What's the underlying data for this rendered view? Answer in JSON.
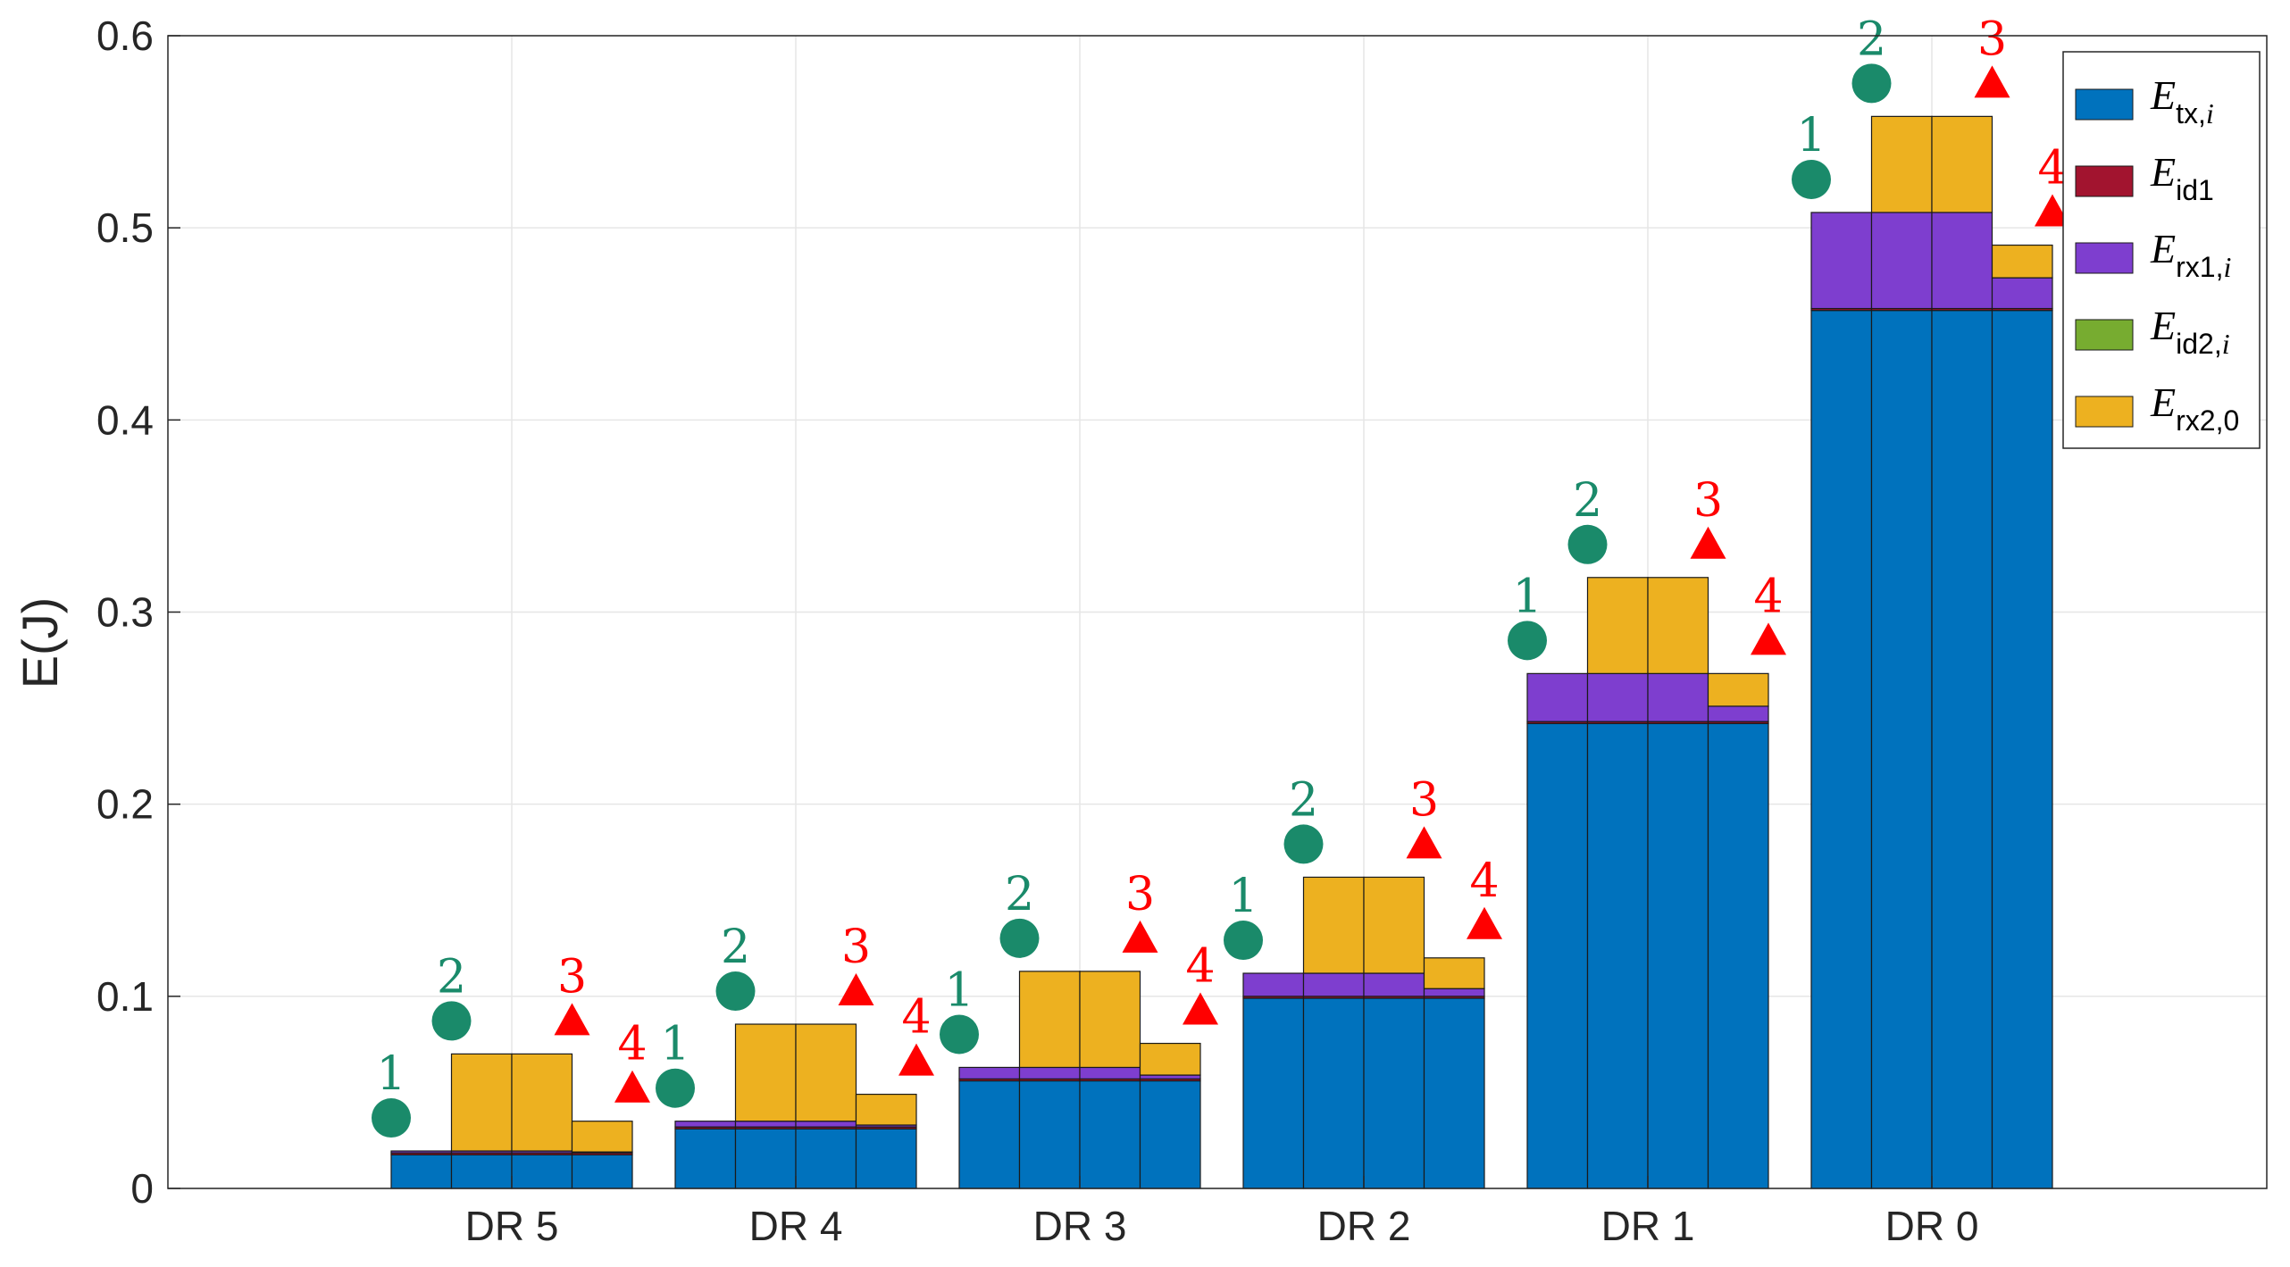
{
  "chart_data": {
    "type": "bar",
    "stacked": true,
    "title": "",
    "xlabel": "",
    "ylabel": "E(J)",
    "ylim": [
      0,
      0.6
    ],
    "yticks": [
      0,
      0.1,
      0.2,
      0.3,
      0.4,
      0.5,
      0.6
    ],
    "ytick_labels": [
      "0",
      "0.1",
      "0.2",
      "0.3",
      "0.4",
      "0.5",
      "0.6"
    ],
    "grid": true,
    "categories": [
      "DR 5",
      "DR 4",
      "DR 3",
      "DR 2",
      "DR 1",
      "DR 0"
    ],
    "bars_per_group": 4,
    "bar_labels": [
      "1",
      "2",
      "3",
      "4"
    ],
    "marker_shapes": [
      "circle",
      "circle",
      "triangle",
      "triangle"
    ],
    "marker_colors": [
      "#1a8a6a",
      "#1a8a6a",
      "#ff0000",
      "#ff0000"
    ],
    "legend_position": "top-right",
    "components": [
      {
        "key": "tx",
        "symbol": "E",
        "subscript": "tx,",
        "subscript_italic": "i",
        "color": "#0072bd"
      },
      {
        "key": "id1",
        "symbol": "E",
        "subscript": "id1",
        "subscript_italic": "",
        "color": "#a2142f"
      },
      {
        "key": "rx1",
        "symbol": "E",
        "subscript": "rx1,",
        "subscript_italic": "i",
        "color": "#7e3ecf"
      },
      {
        "key": "id2",
        "symbol": "E",
        "subscript": "id2,",
        "subscript_italic": "i",
        "color": "#77ac30"
      },
      {
        "key": "rx2",
        "symbol": "E",
        "subscript": "rx2,0",
        "subscript_italic": "",
        "color": "#edb120"
      }
    ],
    "groups": [
      {
        "name": "DR 5",
        "bars": [
          {
            "tx": 0.0175,
            "id1": 0.001,
            "rx1": 0.001,
            "id2": 0,
            "rx2": 0
          },
          {
            "tx": 0.0175,
            "id1": 0.001,
            "rx1": 0.001,
            "id2": 0,
            "rx2": 0.0505
          },
          {
            "tx": 0.0175,
            "id1": 0.001,
            "rx1": 0.001,
            "id2": 0,
            "rx2": 0.0505
          },
          {
            "tx": 0.0175,
            "id1": 0.001,
            "rx1": 0.0005,
            "id2": 0,
            "rx2": 0.016
          }
        ]
      },
      {
        "name": "DR 4",
        "bars": [
          {
            "tx": 0.031,
            "id1": 0.001,
            "rx1": 0.003,
            "id2": 0,
            "rx2": 0
          },
          {
            "tx": 0.031,
            "id1": 0.001,
            "rx1": 0.003,
            "id2": 0,
            "rx2": 0.0505
          },
          {
            "tx": 0.031,
            "id1": 0.001,
            "rx1": 0.003,
            "id2": 0,
            "rx2": 0.0505
          },
          {
            "tx": 0.031,
            "id1": 0.001,
            "rx1": 0.001,
            "id2": 0,
            "rx2": 0.016
          }
        ]
      },
      {
        "name": "DR 3",
        "bars": [
          {
            "tx": 0.056,
            "id1": 0.001,
            "rx1": 0.006,
            "id2": 0,
            "rx2": 0
          },
          {
            "tx": 0.056,
            "id1": 0.001,
            "rx1": 0.006,
            "id2": 0,
            "rx2": 0.05
          },
          {
            "tx": 0.056,
            "id1": 0.001,
            "rx1": 0.006,
            "id2": 0,
            "rx2": 0.05
          },
          {
            "tx": 0.056,
            "id1": 0.001,
            "rx1": 0.002,
            "id2": 0,
            "rx2": 0.0165
          }
        ]
      },
      {
        "name": "DR 2",
        "bars": [
          {
            "tx": 0.099,
            "id1": 0.001,
            "rx1": 0.012,
            "id2": 0,
            "rx2": 0
          },
          {
            "tx": 0.099,
            "id1": 0.001,
            "rx1": 0.012,
            "id2": 0,
            "rx2": 0.05
          },
          {
            "tx": 0.099,
            "id1": 0.001,
            "rx1": 0.012,
            "id2": 0,
            "rx2": 0.05
          },
          {
            "tx": 0.099,
            "id1": 0.001,
            "rx1": 0.004,
            "id2": 0,
            "rx2": 0.016
          }
        ]
      },
      {
        "name": "DR 1",
        "bars": [
          {
            "tx": 0.242,
            "id1": 0.001,
            "rx1": 0.025,
            "id2": 0,
            "rx2": 0
          },
          {
            "tx": 0.242,
            "id1": 0.001,
            "rx1": 0.025,
            "id2": 0,
            "rx2": 0.05
          },
          {
            "tx": 0.242,
            "id1": 0.001,
            "rx1": 0.025,
            "id2": 0,
            "rx2": 0.05
          },
          {
            "tx": 0.242,
            "id1": 0.001,
            "rx1": 0.008,
            "id2": 0,
            "rx2": 0.017
          }
        ]
      },
      {
        "name": "DR 0",
        "bars": [
          {
            "tx": 0.457,
            "id1": 0.001,
            "rx1": 0.05,
            "id2": 0,
            "rx2": 0
          },
          {
            "tx": 0.457,
            "id1": 0.001,
            "rx1": 0.05,
            "id2": 0,
            "rx2": 0.05
          },
          {
            "tx": 0.457,
            "id1": 0.001,
            "rx1": 0.05,
            "id2": 0,
            "rx2": 0.05
          },
          {
            "tx": 0.457,
            "id1": 0.001,
            "rx1": 0.016,
            "id2": 0,
            "rx2": 0.017
          }
        ]
      }
    ]
  }
}
